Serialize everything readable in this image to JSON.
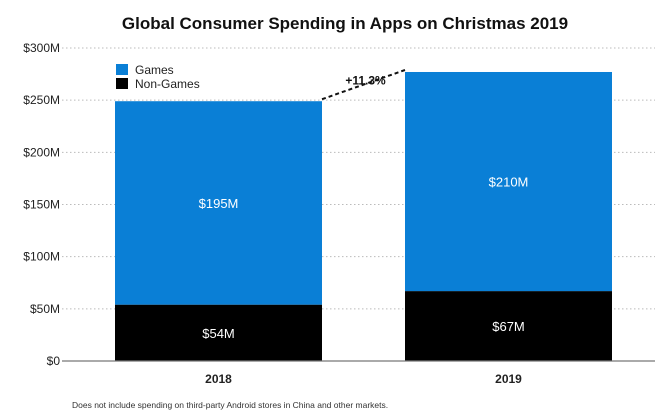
{
  "chart_data": {
    "type": "bar",
    "stacked": true,
    "title": "Global Consumer Spending in Apps on Christmas 2019",
    "xlabel": "",
    "ylabel": "",
    "categories": [
      "2018",
      "2019"
    ],
    "series": [
      {
        "name": "Non-Games",
        "color": "#000000",
        "values": [
          54,
          67
        ],
        "labels": [
          "$54M",
          "$67M"
        ]
      },
      {
        "name": "Games",
        "color": "#0a7fd6",
        "values": [
          195,
          210
        ],
        "labels": [
          "$195M",
          "$210M"
        ]
      }
    ],
    "ylim": [
      0,
      300
    ],
    "yticks": [
      0,
      50,
      100,
      150,
      200,
      250,
      300
    ],
    "ytick_labels": [
      "$0",
      "$50M",
      "$100M",
      "$150M",
      "$200M",
      "$250M",
      "$300M"
    ],
    "grid": true,
    "legend": {
      "position": "top-left",
      "entries": [
        "Games",
        "Non-Games"
      ]
    },
    "annotation": {
      "text": "+11.3%",
      "type": "growth-connector"
    },
    "footnote": "Does not include spending on third-party Android stores in China and other markets."
  }
}
